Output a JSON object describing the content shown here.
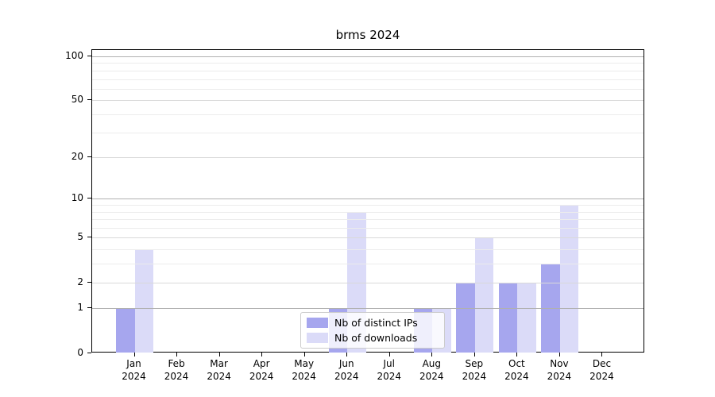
{
  "chart": {
    "colors": {
      "distinct_ips": "#a6a6ee",
      "downloads": "#dbdbf8",
      "grid_decade": "#b0b0b0",
      "grid_major": "#d9d9d9",
      "grid_minor": "#ececec",
      "spine": "#000000",
      "legend_border": "#cccccc"
    },
    "legend": {
      "items": [
        {
          "label": "Nb of distinct IPs",
          "color": "#a6a6ee"
        },
        {
          "label": "Nb of downloads",
          "color": "#dbdbf8"
        }
      ]
    }
  },
  "chart_data": {
    "type": "bar",
    "title": "brms 2024",
    "categories": [
      "Jan 2024",
      "Feb 2024",
      "Mar 2024",
      "Apr 2024",
      "May 2024",
      "Jun 2024",
      "Jul 2024",
      "Aug 2024",
      "Sep 2024",
      "Oct 2024",
      "Nov 2024",
      "Dec 2024"
    ],
    "month_labels": [
      "Jan",
      "Feb",
      "Mar",
      "Apr",
      "May",
      "Jun",
      "Jul",
      "Aug",
      "Sep",
      "Oct",
      "Nov",
      "Dec"
    ],
    "year_label": "2024",
    "series": [
      {
        "name": "Nb of distinct IPs",
        "color": "#a6a6ee",
        "values": [
          1,
          0,
          0,
          0,
          0,
          1,
          0,
          1,
          2,
          2,
          3,
          0
        ]
      },
      {
        "name": "Nb of downloads",
        "color": "#dbdbf8",
        "values": [
          4,
          0,
          0,
          0,
          0,
          8,
          0,
          1,
          5,
          2,
          9,
          0
        ]
      }
    ],
    "xlabel": "",
    "ylabel": "",
    "yscale": "log10(1+v)",
    "yticks": [
      0,
      1,
      2,
      5,
      10,
      20,
      50,
      100
    ],
    "yticks_minor": [
      3,
      4,
      6,
      7,
      8,
      9,
      30,
      40,
      60,
      70,
      80,
      90
    ],
    "ylim": [
      0,
      112
    ],
    "grid": true,
    "grid_above_bars": true,
    "legend_position": "lower center"
  }
}
